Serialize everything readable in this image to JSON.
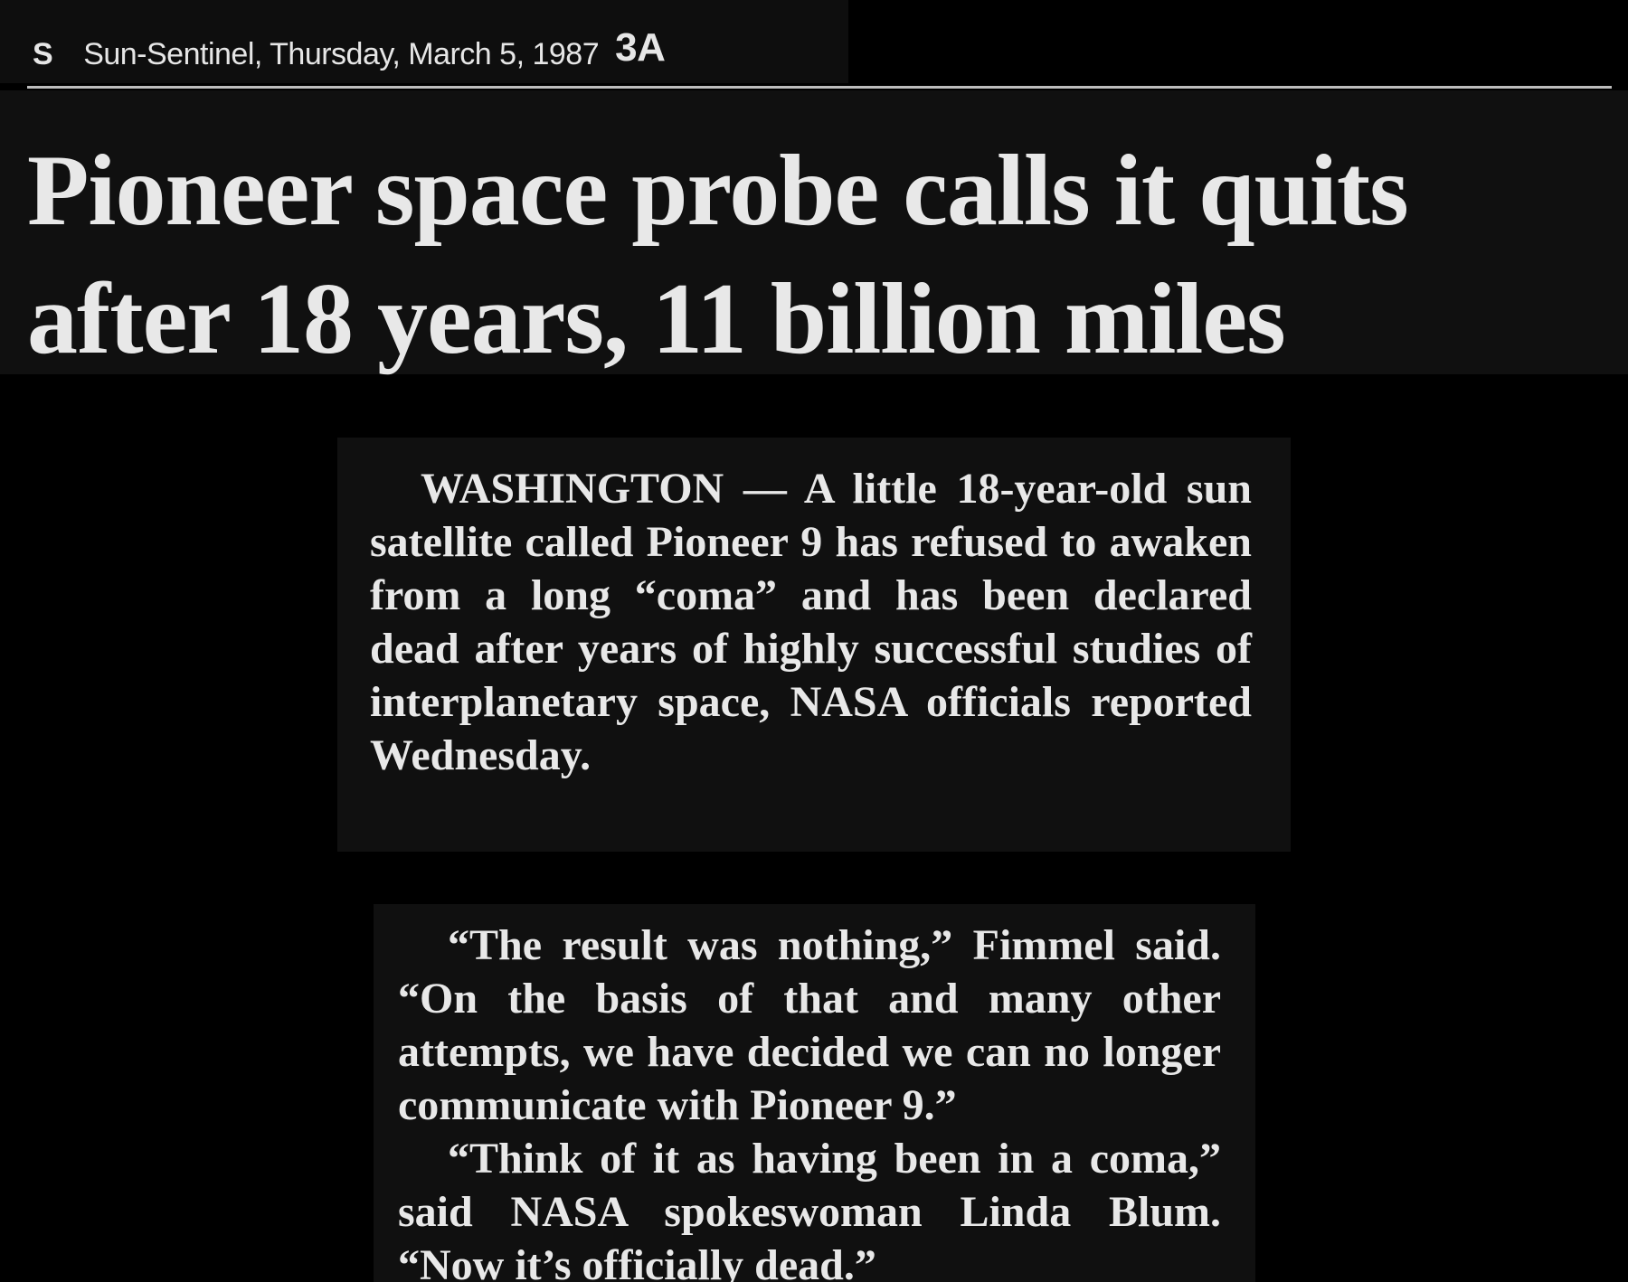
{
  "header": {
    "section": "S",
    "dateline": "Sun-Sentinel, Thursday, March 5, 1987",
    "page": "3A"
  },
  "headline": {
    "line1": "Pioneer space probe calls it quits",
    "line2": "after 18 years, 11 billion miles"
  },
  "article": {
    "lead_paragraph": "WASHINGTON — A little 18-year-old sun satellite called Pioneer 9 has refused to awaken from a long “coma” and has been declared dead after years of highly successful studies of interplanetary space, NASA officials reported Wednesday.",
    "quote_paragraph_1": "“The result was nothing,” Fimmel said. “On the basis of that and many other attempts, we have decided we can no longer communicate with Pioneer 9.”",
    "quote_paragraph_2": "“Think of it as having been in a coma,” said NASA spokeswoman Linda Blum. “Now it’s officially dead.”"
  }
}
